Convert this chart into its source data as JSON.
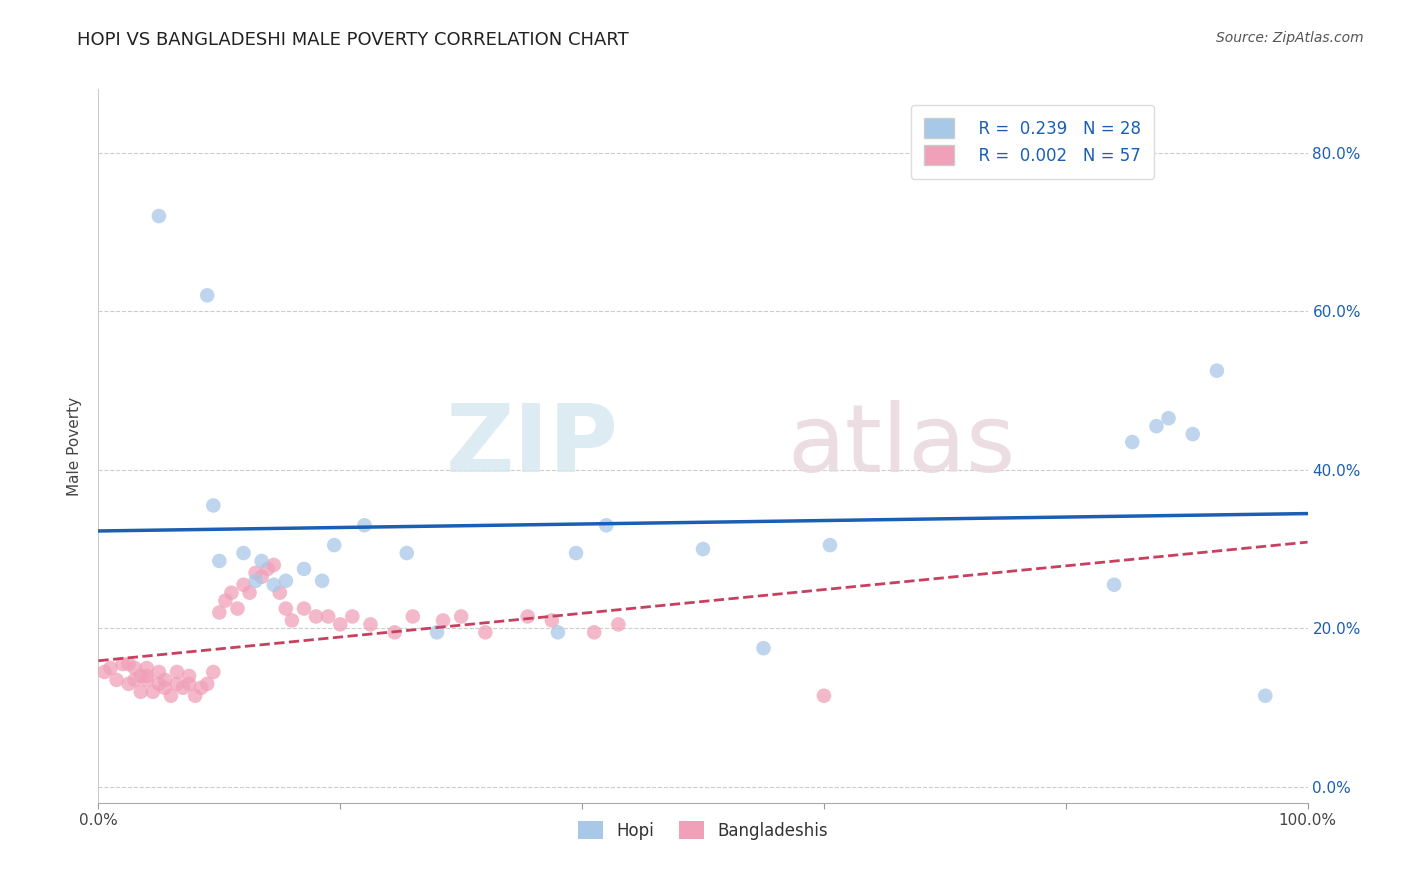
{
  "title": "HOPI VS BANGLADESHI MALE POVERTY CORRELATION CHART",
  "source": "Source: ZipAtlas.com",
  "ylabel": "Male Poverty",
  "xlim": [
    0,
    1.0
  ],
  "ylim": [
    -0.02,
    0.88
  ],
  "xticks": [
    0.0,
    0.2,
    0.4,
    0.6,
    0.8,
    1.0
  ],
  "xticklabels": [
    "0.0%",
    "",
    "",
    "",
    "",
    "100.0%"
  ],
  "yticks": [
    0.0,
    0.2,
    0.4,
    0.6,
    0.8
  ],
  "yticklabels_left": [
    "",
    "",
    "",
    "",
    ""
  ],
  "yticklabels_right": [
    "0.0%",
    "20.0%",
    "40.0%",
    "60.0%",
    "80.0%"
  ],
  "hopi_R": "0.239",
  "hopi_N": "28",
  "bangladeshi_R": "0.002",
  "bangladeshi_N": "57",
  "hopi_color": "#a8c8e8",
  "bangladeshi_color": "#f0a0b8",
  "hopi_line_color": "#1a5fb4",
  "bangladeshi_line_color": "#c84060",
  "legend_label_hopi": "Hopi",
  "legend_label_bangladeshi": "Bangladeshis",
  "watermark_zip": "ZIP",
  "watermark_atlas": "atlas",
  "hopi_x": [
    0.05,
    0.09,
    0.095,
    0.1,
    0.12,
    0.13,
    0.135,
    0.145,
    0.155,
    0.17,
    0.185,
    0.195,
    0.22,
    0.255,
    0.28,
    0.38,
    0.395,
    0.42,
    0.5,
    0.55,
    0.605,
    0.84,
    0.855,
    0.875,
    0.885,
    0.905,
    0.925,
    0.965
  ],
  "hopi_y": [
    0.72,
    0.62,
    0.355,
    0.285,
    0.295,
    0.26,
    0.285,
    0.255,
    0.26,
    0.275,
    0.26,
    0.305,
    0.33,
    0.295,
    0.195,
    0.195,
    0.295,
    0.33,
    0.3,
    0.175,
    0.305,
    0.255,
    0.435,
    0.455,
    0.465,
    0.445,
    0.525,
    0.115
  ],
  "bangladeshi_x": [
    0.005,
    0.01,
    0.015,
    0.02,
    0.025,
    0.025,
    0.03,
    0.03,
    0.035,
    0.035,
    0.04,
    0.04,
    0.04,
    0.045,
    0.05,
    0.05,
    0.055,
    0.055,
    0.06,
    0.065,
    0.065,
    0.07,
    0.075,
    0.075,
    0.08,
    0.085,
    0.09,
    0.095,
    0.1,
    0.105,
    0.11,
    0.115,
    0.12,
    0.125,
    0.13,
    0.135,
    0.14,
    0.145,
    0.15,
    0.155,
    0.16,
    0.17,
    0.18,
    0.19,
    0.2,
    0.21,
    0.225,
    0.245,
    0.26,
    0.285,
    0.3,
    0.32,
    0.355,
    0.375,
    0.41,
    0.43,
    0.6
  ],
  "bangladeshi_y": [
    0.145,
    0.15,
    0.135,
    0.155,
    0.13,
    0.155,
    0.135,
    0.15,
    0.12,
    0.14,
    0.135,
    0.14,
    0.15,
    0.12,
    0.13,
    0.145,
    0.125,
    0.135,
    0.115,
    0.13,
    0.145,
    0.125,
    0.13,
    0.14,
    0.115,
    0.125,
    0.13,
    0.145,
    0.22,
    0.235,
    0.245,
    0.225,
    0.255,
    0.245,
    0.27,
    0.265,
    0.275,
    0.28,
    0.245,
    0.225,
    0.21,
    0.225,
    0.215,
    0.215,
    0.205,
    0.215,
    0.205,
    0.195,
    0.215,
    0.21,
    0.215,
    0.195,
    0.215,
    0.21,
    0.195,
    0.205,
    0.115
  ]
}
